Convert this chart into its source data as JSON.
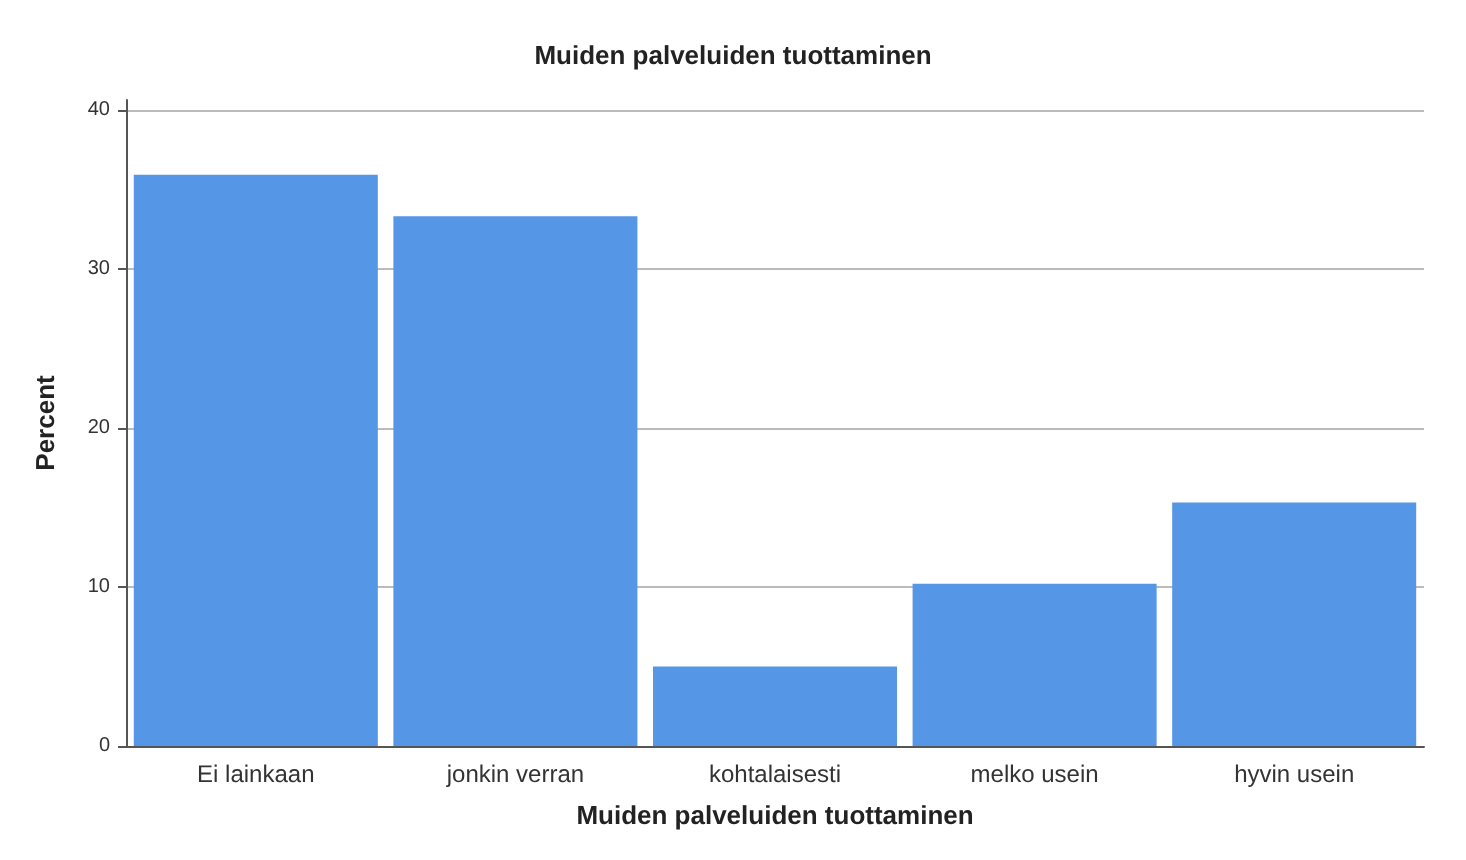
{
  "chart_data": {
    "type": "bar",
    "title": "Muiden palveluiden tuottaminen",
    "xlabel": "Muiden palveluiden tuottaminen",
    "ylabel": "Percent",
    "categories": [
      "Ei lainkaan",
      "jonkin verran",
      "kohtalaisesti",
      "melko usein",
      "hyvin usein"
    ],
    "values": [
      35.9,
      33.3,
      5.0,
      10.2,
      15.3
    ],
    "color": "#5596e6",
    "ylim": [
      0,
      40.6
    ],
    "yticks": [
      0,
      10,
      20,
      30,
      40
    ],
    "grid": "y"
  }
}
